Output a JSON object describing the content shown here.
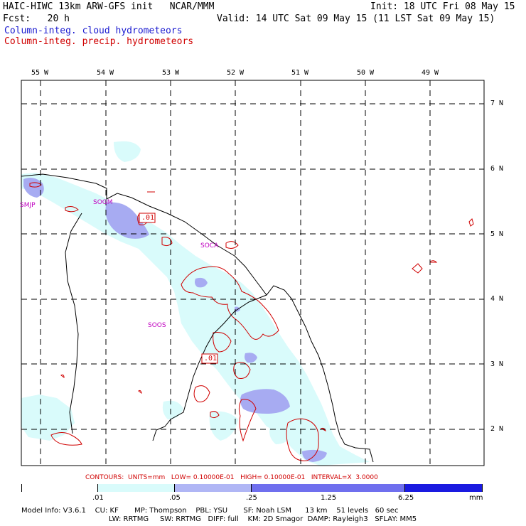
{
  "header": {
    "model_line": "HAIC-HIWC 13km ARW-GFS init   NCAR/MMM",
    "init": "Init: 18 UTC Fri 08 May 15",
    "fcst": "Fcst:   20 h",
    "valid": "Valid: 14 UTC Sat 09 May 15 (11 LST Sat 09 May 15)",
    "field_cloud": "Column-integ. cloud hydrometeors",
    "field_precip": "Column-integ. precip. hydrometeors"
  },
  "map": {
    "lon_labels": [
      "55 W",
      "54 W",
      "53 W",
      "52 W",
      "51 W",
      "50 W",
      "49 W"
    ],
    "lat_labels": [
      "7 N",
      "6 N",
      "5 N",
      "4 N",
      "3 N",
      "2 N"
    ],
    "stations": [
      "SMJP",
      "SOGM",
      "SOCA",
      "SOOS"
    ],
    "contour_labels": [
      ".01",
      ".01"
    ]
  },
  "contours_info": "CONTOURS:  UNITS=mm   LOW= 0.10000E-01   HIGH= 0.10000E-01   INTERVAL=X  3.0000",
  "colorbar": {
    "labels": [
      ".01",
      ".05",
      ".25",
      "1.25",
      "6.25"
    ],
    "units": "mm",
    "colors": [
      "#ffffff",
      "#d9fbfb",
      "#b0b6f5",
      "#6f6fee",
      "#1a1ae0"
    ]
  },
  "model_info": {
    "line1": "Model Info: V3.6.1    CU: KF       MP: Thompson    PBL: YSU       SF: Noah LSM      13 km    51 levels   60 sec",
    "line2": "LW: RRTMG     SW: RRTMG   DIFF: full    KM: 2D Smagor  DAMP: Rayleigh3   SFLAY: MM5"
  },
  "colors": {
    "cloud_light": "#d9fbfb",
    "cloud_mid": "#b0b6f5",
    "precip_contour": "#d00000",
    "station_text": "#c000c0"
  }
}
